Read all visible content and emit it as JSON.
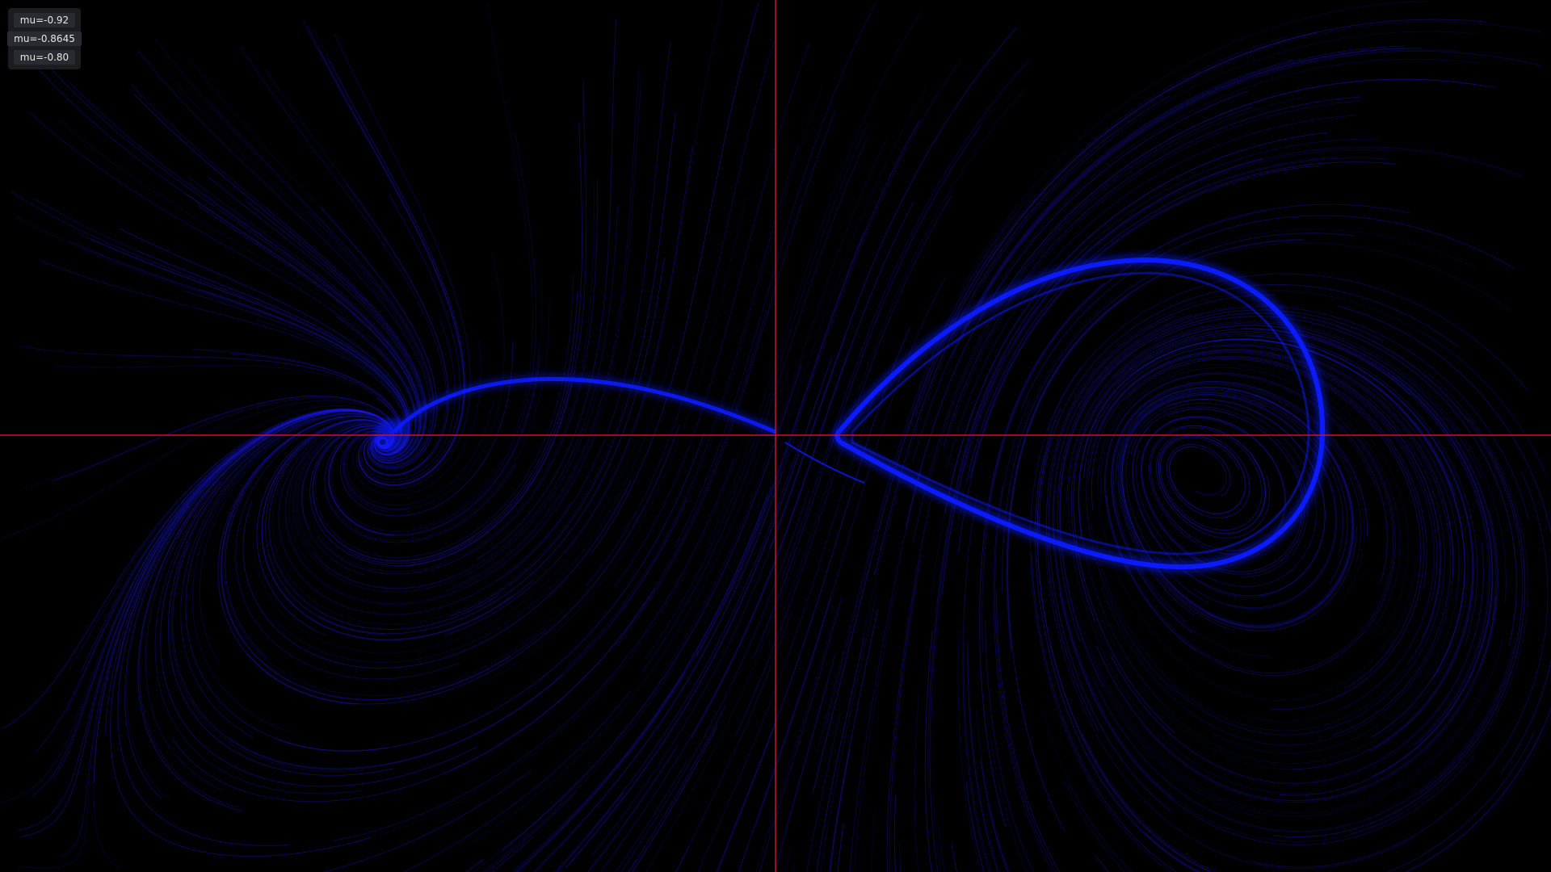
{
  "buttons": [
    "mu=-0.92",
    "mu=-0.8645",
    "mu=-0.80"
  ]
}
